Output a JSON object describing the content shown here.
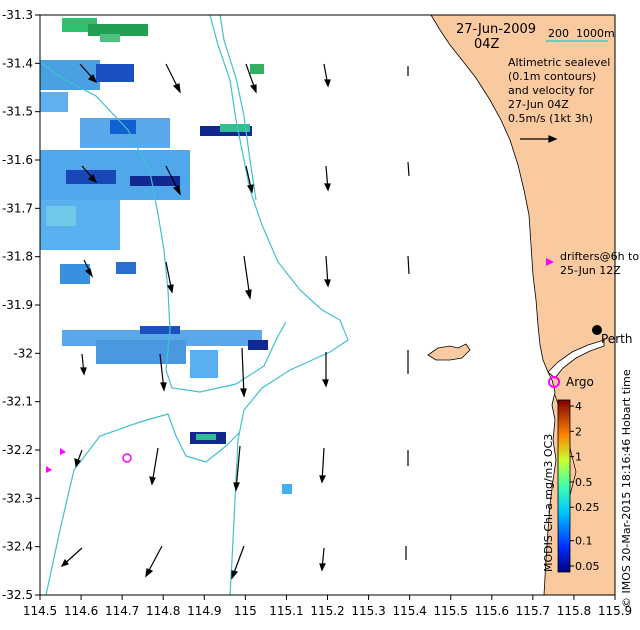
{
  "header": {
    "date": "27-Jun-2009",
    "time": "04Z",
    "scale_label": "200  1000m"
  },
  "legend_note": {
    "lines": [
      "Altimetric sealevel",
      "(0.1m contours)",
      "and velocity for",
      "27-Jun 04Z",
      "0.5m/s (1kt 3h)"
    ]
  },
  "drifters_note": {
    "lines": [
      "drifters@6h to",
      "25-Jun 12Z"
    ]
  },
  "places": {
    "perth": "Perth",
    "argo": "Argo"
  },
  "side_credit": "© IMOS 20-Mar-2015 18:16:46 Hobart time",
  "colorbar": {
    "title": "MODIS Chl-a mg/m3 OC3",
    "ticks": [
      {
        "label": "4",
        "value": 4
      },
      {
        "label": "2",
        "value": 2
      },
      {
        "label": "1",
        "value": 1
      },
      {
        "label": "0.5",
        "value": 0.5
      },
      {
        "label": "0.25",
        "value": 0.25
      },
      {
        "label": "0.1",
        "value": 0.1
      },
      {
        "label": "0.05",
        "value": 0.05
      }
    ]
  },
  "axes": {
    "x_ticks": [
      "114.5",
      "114.6",
      "114.7",
      "114.8",
      "114.9",
      "115",
      "115.1",
      "115.2",
      "115.3",
      "115.4",
      "115.5",
      "115.6",
      "115.7",
      "115.8",
      "115.9"
    ],
    "y_ticks": [
      "-31.3",
      "-31.4",
      "-31.5",
      "-31.6",
      "-31.7",
      "-31.8",
      "-31.9",
      "-32",
      "-32.1",
      "-32.2",
      "-32.3",
      "-32.4",
      "-32.5"
    ],
    "xlim": [
      114.5,
      115.9
    ],
    "ylim": [
      -32.5,
      -31.3
    ]
  },
  "colors": {
    "land": "#f9c9a0",
    "contour": "#40c0d0",
    "drifter": "#ff00ff"
  }
}
